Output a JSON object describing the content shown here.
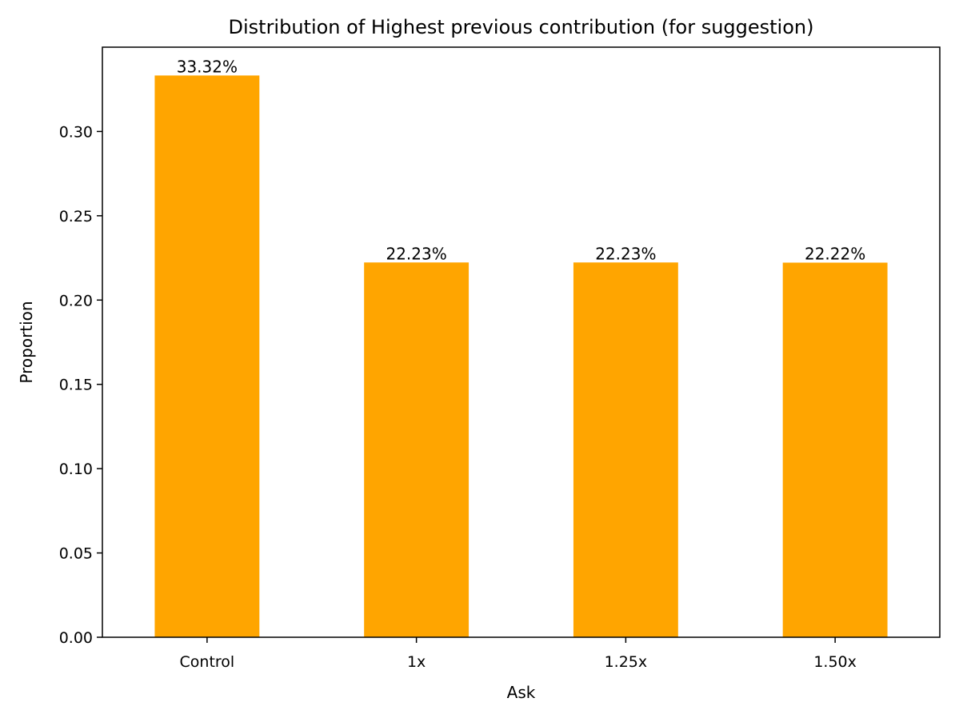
{
  "chart_data": {
    "type": "bar",
    "title": "Distribution of Highest previous contribution (for suggestion)",
    "xlabel": "Ask",
    "ylabel": "Proportion",
    "categories": [
      "Control",
      "1x",
      "1.25x",
      "1.50x"
    ],
    "values": [
      0.3332,
      0.2223,
      0.2223,
      0.2222
    ],
    "data_labels": [
      "33.32%",
      "22.23%",
      "22.23%",
      "22.22%"
    ],
    "ylim": [
      0,
      0.35
    ],
    "yticks": [
      0.0,
      0.05,
      0.1,
      0.15,
      0.2,
      0.25,
      0.3
    ],
    "ytick_labels": [
      "0.00",
      "0.05",
      "0.10",
      "0.15",
      "0.20",
      "0.25",
      "0.30"
    ],
    "grid": false,
    "legend": "none",
    "bar_color": "#ffa500"
  }
}
